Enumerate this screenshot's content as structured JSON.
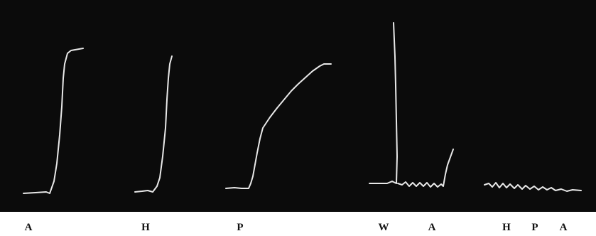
{
  "labels": [
    "A",
    "H",
    "P",
    "W",
    "A",
    "H",
    "P",
    "A"
  ]
}
